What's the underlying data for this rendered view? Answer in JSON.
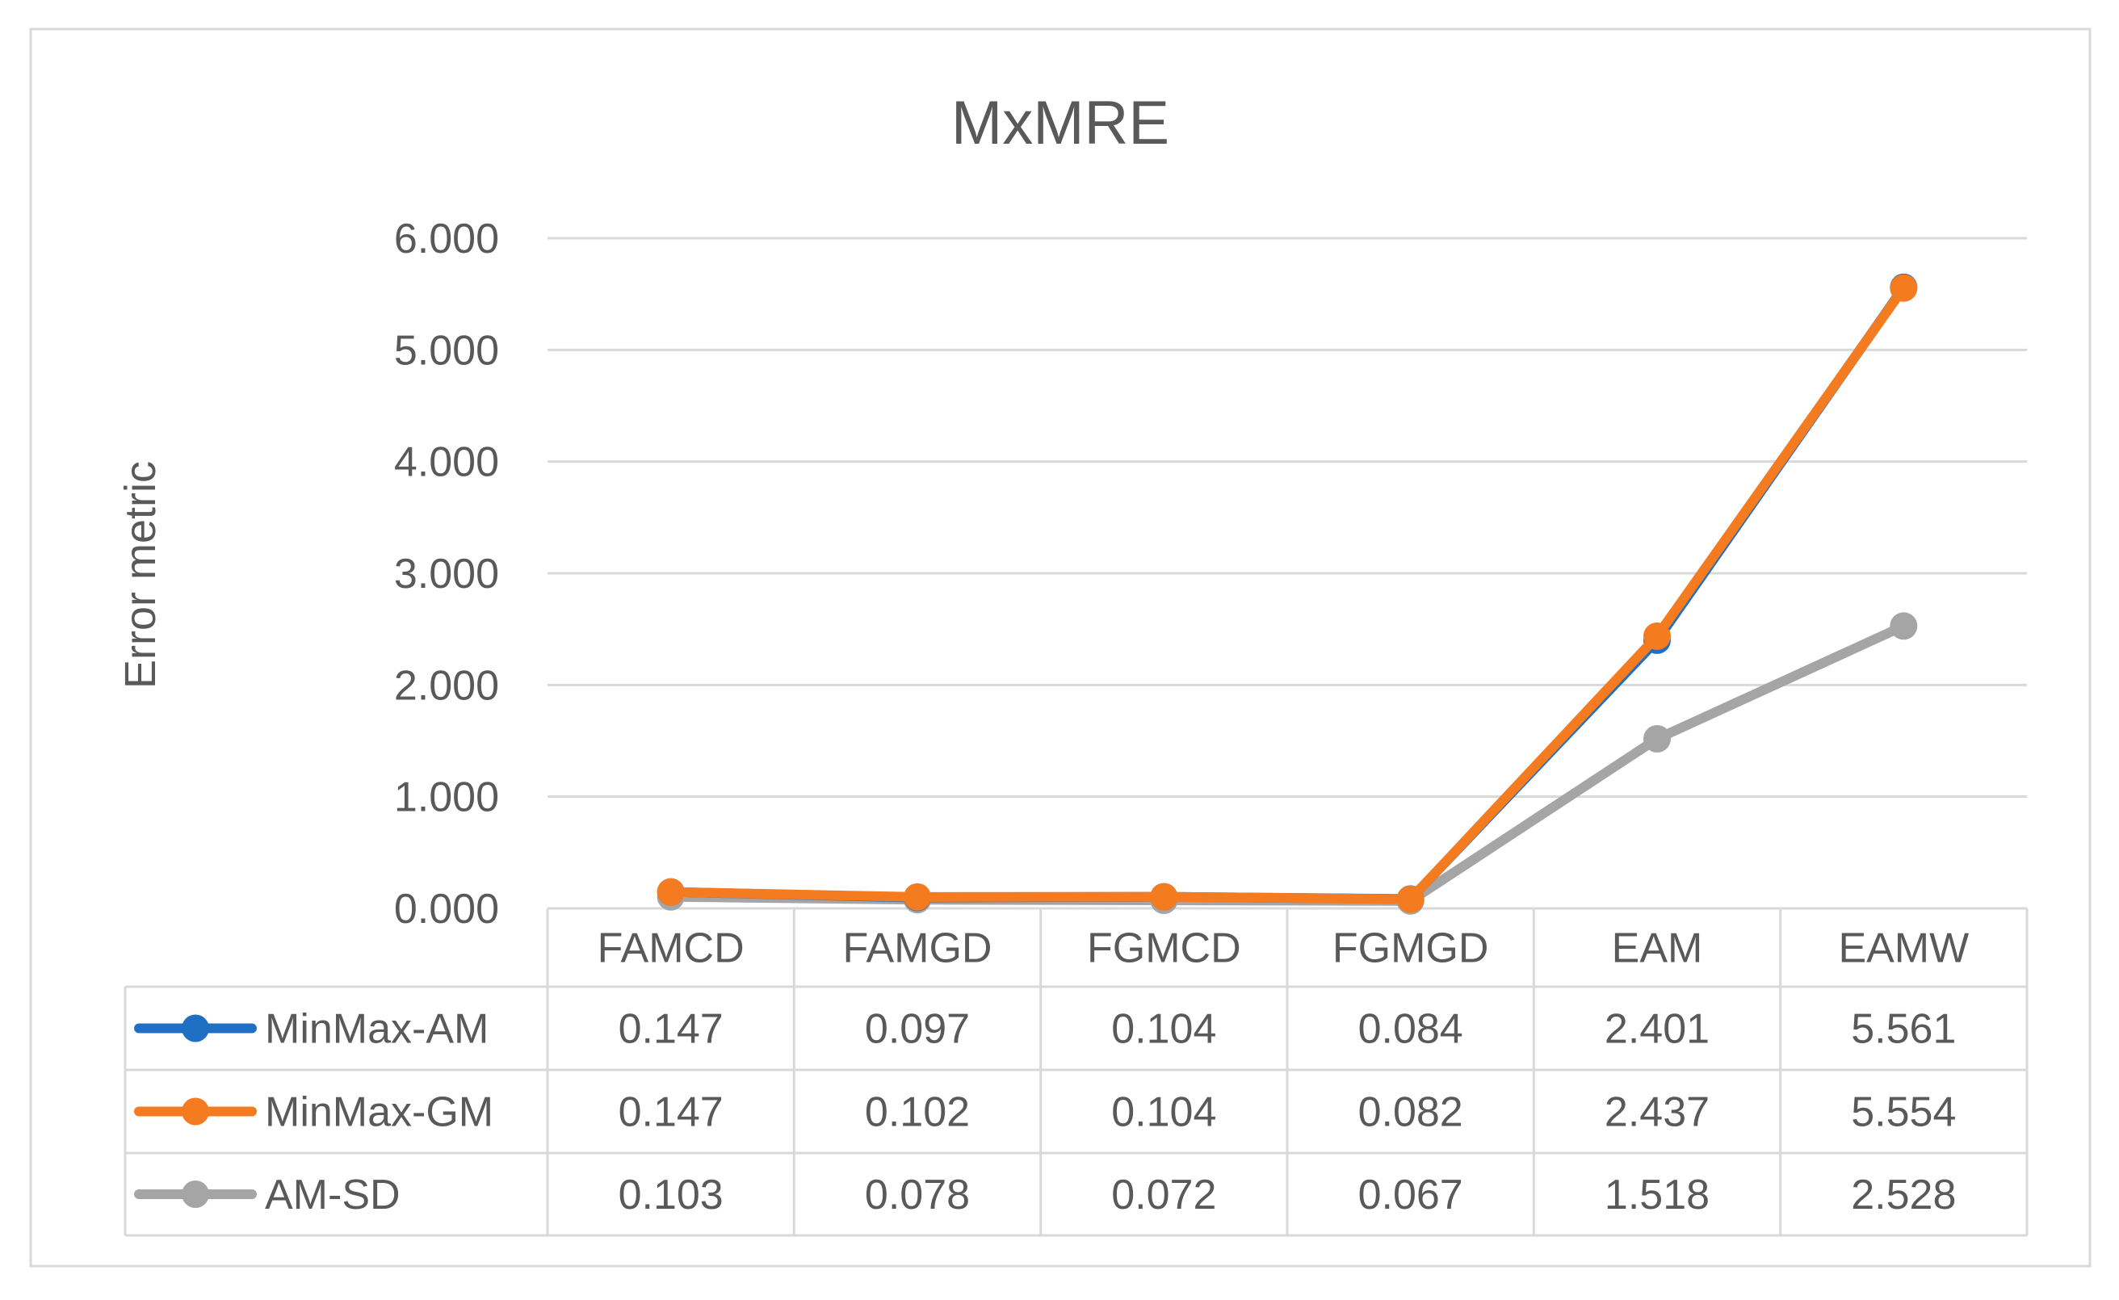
{
  "chart_data": {
    "type": "line",
    "title": "MxMRE",
    "xlabel": "",
    "ylabel": "Error metric",
    "categories": [
      "FAMCD",
      "FAMGD",
      "FGMCD",
      "FGMGD",
      "EAM",
      "EAMW"
    ],
    "ylim": [
      0,
      6
    ],
    "yticks": [
      "0.000",
      "1.000",
      "2.000",
      "3.000",
      "4.000",
      "5.000",
      "6.000"
    ],
    "grid": true,
    "legend": "data-table",
    "series": [
      {
        "name": "MinMax-AM",
        "color": "#1f6fc5",
        "values": [
          0.147,
          0.097,
          0.104,
          0.084,
          2.401,
          5.561
        ],
        "labels": [
          "0.147",
          "0.097",
          "0.104",
          "0.084",
          "2.401",
          "5.561"
        ]
      },
      {
        "name": "MinMax-GM",
        "color": "#f47b20",
        "values": [
          0.147,
          0.102,
          0.104,
          0.082,
          2.437,
          5.554
        ],
        "labels": [
          "0.147",
          "0.102",
          "0.104",
          "0.082",
          "2.437",
          "5.554"
        ]
      },
      {
        "name": "AM-SD",
        "color": "#a5a5a5",
        "values": [
          0.103,
          0.078,
          0.072,
          0.067,
          1.518,
          2.528
        ],
        "labels": [
          "0.103",
          "0.078",
          "0.072",
          "0.067",
          "1.518",
          "2.528"
        ]
      }
    ]
  }
}
